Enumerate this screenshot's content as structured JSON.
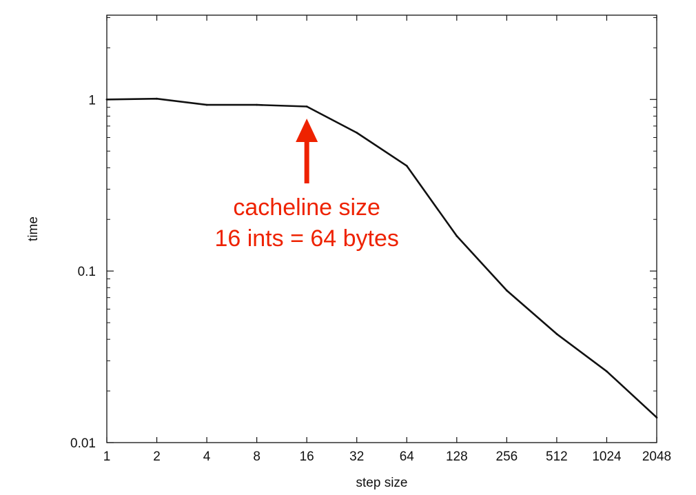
{
  "chart_data": {
    "type": "line",
    "xlabel": "step size",
    "ylabel": "time",
    "x_scale": "log2",
    "y_scale": "log10",
    "xlim": [
      1,
      2048
    ],
    "ylim": [
      0.01,
      3.1
    ],
    "x_ticks": [
      "1",
      "2",
      "4",
      "8",
      "16",
      "32",
      "64",
      "128",
      "256",
      "512",
      "1024",
      "2048"
    ],
    "y_ticks": [
      {
        "value": 1,
        "label": "1"
      },
      {
        "value": 0.1,
        "label": "0.1"
      },
      {
        "value": 0.01,
        "label": "0.01"
      }
    ],
    "grid": false,
    "series": [
      {
        "color": "#111111",
        "points": [
          {
            "x": 1,
            "y": 1.0
          },
          {
            "x": 2,
            "y": 1.01
          },
          {
            "x": 4,
            "y": 0.93
          },
          {
            "x": 8,
            "y": 0.93
          },
          {
            "x": 16,
            "y": 0.91
          },
          {
            "x": 32,
            "y": 0.64
          },
          {
            "x": 64,
            "y": 0.41
          },
          {
            "x": 128,
            "y": 0.16
          },
          {
            "x": 256,
            "y": 0.077
          },
          {
            "x": 512,
            "y": 0.043
          },
          {
            "x": 1024,
            "y": 0.026
          },
          {
            "x": 2048,
            "y": 0.014
          }
        ]
      }
    ],
    "annotation": {
      "lines": [
        "cacheline size",
        "16 ints = 64 bytes"
      ],
      "arrow_target_x": 16,
      "color": "#ee2200"
    }
  }
}
